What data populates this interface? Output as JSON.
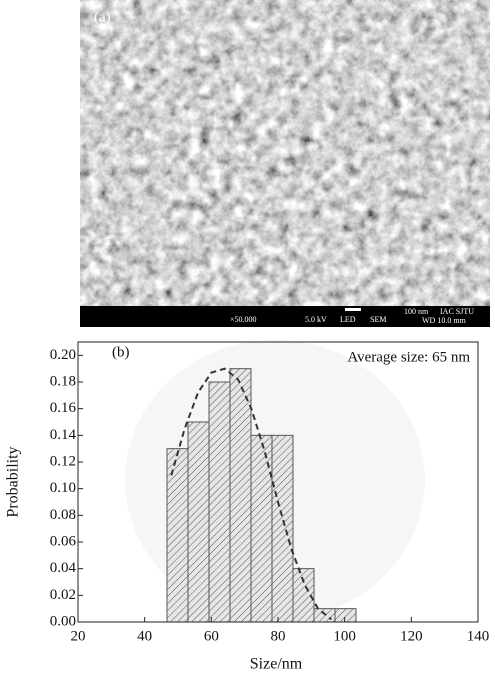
{
  "image": {
    "label": "(a)",
    "magnification": "×50.000",
    "voltage": "5.0 kV",
    "detector": "LED",
    "mode": "SEM",
    "scale": "100 nm",
    "institution": "IAC SJTU",
    "working_distance": "WD 10.0 mm"
  },
  "chart_data": {
    "type": "histogram",
    "label": "(b)",
    "annotation": "Average size: 65 nm",
    "xlabel": "Size/nm",
    "ylabel": "Probability",
    "bins": [
      46.7,
      53,
      59.3,
      65.6,
      71.9,
      78.2,
      84.5,
      90.8,
      97.1,
      103.4
    ],
    "values": [
      0.13,
      0.15,
      0.18,
      0.19,
      0.14,
      0.14,
      0.04,
      0.01,
      0.01
    ],
    "color": "#555555",
    "fit": {
      "x": [
        48,
        52,
        56,
        60,
        64,
        68,
        72,
        76,
        80,
        84,
        88,
        92,
        96
      ],
      "values": [
        0.11,
        0.145,
        0.172,
        0.187,
        0.19,
        0.182,
        0.16,
        0.128,
        0.09,
        0.055,
        0.028,
        0.01,
        0.002
      ],
      "color": "#333333"
    },
    "xlim": [
      20,
      140
    ],
    "ylim": [
      0,
      0.21
    ],
    "xticks": [
      20,
      40,
      60,
      80,
      100,
      120,
      140
    ],
    "yticks": [
      {
        "value": 0,
        "label": "0.00"
      },
      {
        "value": 0.02,
        "label": "0.02"
      },
      {
        "value": 0.04,
        "label": "0.04"
      },
      {
        "value": 0.06,
        "label": "0.06"
      },
      {
        "value": 0.08,
        "label": "0.08"
      },
      {
        "value": 0.1,
        "label": "0.10"
      },
      {
        "value": 0.12,
        "label": "0.12"
      },
      {
        "value": 0.14,
        "label": "0.14"
      },
      {
        "value": 0.16,
        "label": "0.16"
      },
      {
        "value": 0.18,
        "label": "0.18"
      },
      {
        "value": 0.2,
        "label": "0.20"
      }
    ]
  }
}
